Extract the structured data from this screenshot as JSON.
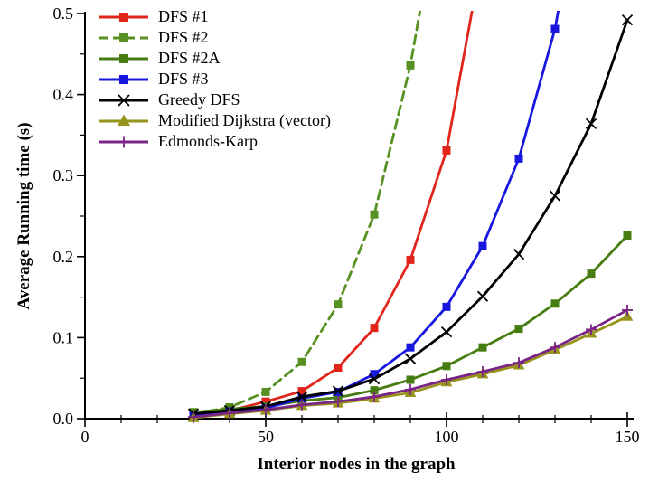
{
  "figure": {
    "background": "#ffffff",
    "text_color": "#000000"
  },
  "chart_data": {
    "type": "line",
    "title": "",
    "xlabel": "Interior nodes in the graph",
    "ylabel": "Average Running time (s)",
    "xlim": [
      0,
      150
    ],
    "ylim": [
      0,
      0.5
    ],
    "grid": false,
    "legend_position": "top-left-inside",
    "x_axis": {
      "major_ticks": [
        0,
        50,
        100,
        150
      ],
      "major_labels": [
        "0",
        "50",
        "100",
        "150"
      ],
      "minor_step": 10
    },
    "y_axis": {
      "major_ticks": [
        0,
        0.1,
        0.2,
        0.3,
        0.4,
        0.5
      ],
      "major_labels": [
        "0.0",
        "0.1",
        "0.2",
        "0.3",
        "0.4",
        "0.5"
      ],
      "minor_step": 0.05
    },
    "series": [
      {
        "name": "DFS #1",
        "color": "#e1251b",
        "marker": "square",
        "line_style": "solid",
        "x": [
          30,
          40,
          50,
          60,
          70,
          80,
          90,
          100
        ],
        "y": [
          0.005,
          0.01,
          0.021,
          0.034,
          0.063,
          0.112,
          0.196,
          0.331
        ],
        "offscale_continuation": [
          110,
          0.575
        ]
      },
      {
        "name": "DFS #2",
        "color": "#579121",
        "marker": "square",
        "line_style": "dashed",
        "x": [
          30,
          40,
          50,
          60,
          70,
          80,
          90
        ],
        "y": [
          0.006,
          0.014,
          0.033,
          0.07,
          0.141,
          0.252,
          0.436
        ],
        "offscale_continuation": [
          100,
          0.69
        ]
      },
      {
        "name": "DFS #2A",
        "color": "#467c10",
        "marker": "square",
        "line_style": "solid",
        "x": [
          30,
          40,
          50,
          60,
          70,
          80,
          90,
          100,
          110,
          120,
          130,
          140,
          150
        ],
        "y": [
          0.008,
          0.012,
          0.015,
          0.022,
          0.026,
          0.035,
          0.048,
          0.065,
          0.088,
          0.111,
          0.142,
          0.179,
          0.226
        ],
        "offscale_continuation": null
      },
      {
        "name": "DFS #3",
        "color": "#1717e0",
        "marker": "square",
        "line_style": "solid",
        "x": [
          30,
          40,
          50,
          60,
          70,
          80,
          90,
          100,
          110,
          120,
          130
        ],
        "y": [
          0.005,
          0.009,
          0.013,
          0.025,
          0.033,
          0.055,
          0.088,
          0.138,
          0.213,
          0.321,
          0.481
        ],
        "offscale_continuation": [
          140,
          0.73
        ]
      },
      {
        "name": "Greedy DFS",
        "color": "#000000",
        "marker": "x",
        "line_style": "solid",
        "x": [
          30,
          40,
          50,
          60,
          70,
          80,
          90,
          100,
          110,
          120,
          130,
          140,
          150
        ],
        "y": [
          0.006,
          0.01,
          0.015,
          0.027,
          0.034,
          0.049,
          0.074,
          0.107,
          0.151,
          0.203,
          0.275,
          0.364,
          0.492
        ],
        "offscale_continuation": null
      },
      {
        "name": "Modified Dijkstra (vector)",
        "color": "#97941b",
        "marker": "triangle",
        "line_style": "solid",
        "x": [
          30,
          40,
          50,
          60,
          70,
          80,
          90,
          100,
          110,
          120,
          130,
          140,
          150
        ],
        "y": [
          0.001,
          0.006,
          0.01,
          0.016,
          0.019,
          0.025,
          0.032,
          0.045,
          0.055,
          0.066,
          0.085,
          0.105,
          0.126
        ],
        "offscale_continuation": null
      },
      {
        "name": "Edmonds-Karp",
        "color": "#7a2585",
        "marker": "plus",
        "line_style": "solid",
        "x": [
          30,
          40,
          50,
          60,
          70,
          80,
          90,
          100,
          110,
          120,
          130,
          140,
          150
        ],
        "y": [
          0.002,
          0.007,
          0.011,
          0.017,
          0.021,
          0.027,
          0.036,
          0.048,
          0.058,
          0.069,
          0.088,
          0.11,
          0.134
        ],
        "offscale_continuation": null
      }
    ]
  }
}
